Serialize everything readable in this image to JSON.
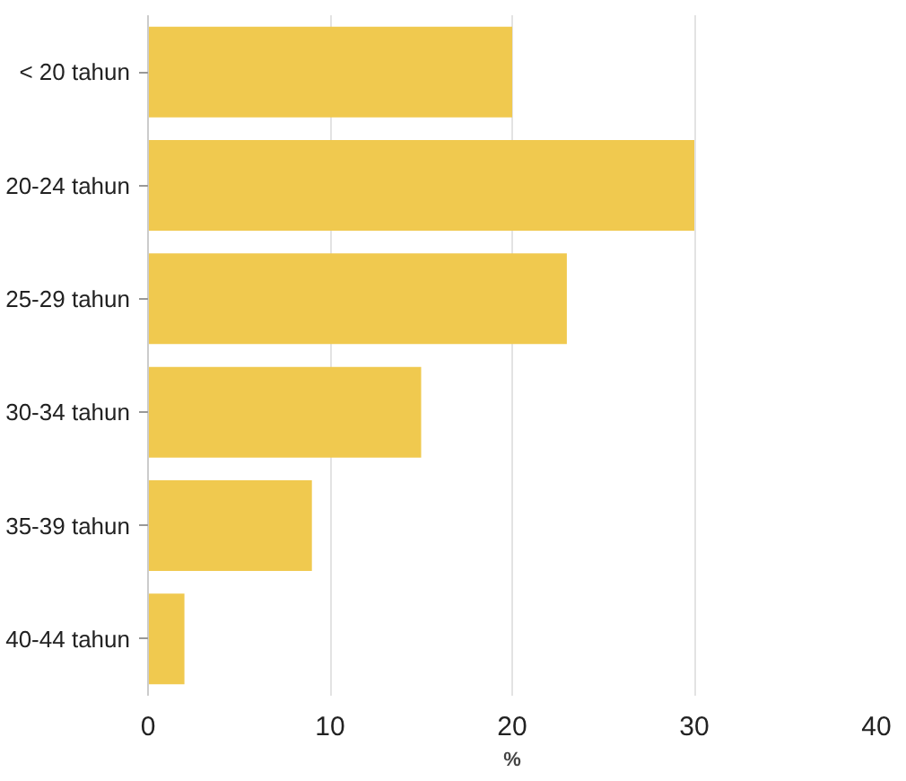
{
  "chart_data": {
    "type": "bar",
    "orientation": "horizontal",
    "categories": [
      "< 20 tahun",
      "20-24 tahun",
      "25-29 tahun",
      "30-34 tahun",
      "35-39 tahun",
      "40-44 tahun"
    ],
    "values": [
      20,
      30,
      23,
      15,
      9,
      2
    ],
    "color": "#f0c94f",
    "xlim": [
      0,
      40
    ],
    "xticks": [
      0,
      10,
      20,
      30,
      40
    ],
    "xlabel": "%",
    "grid": "x"
  }
}
